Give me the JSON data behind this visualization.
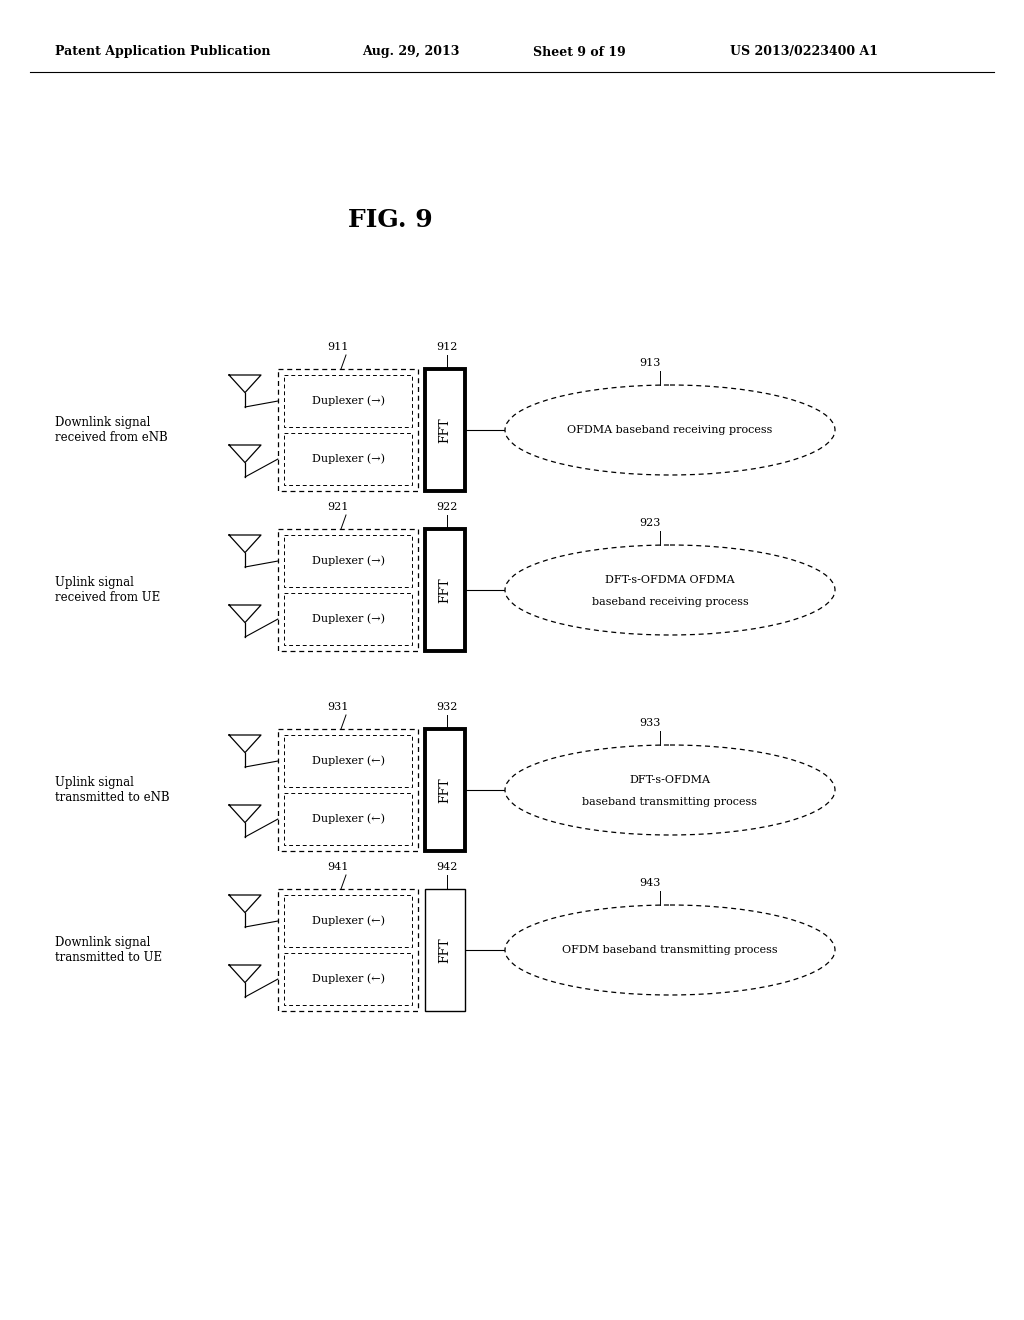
{
  "background_color": "#ffffff",
  "header_text": "Patent Application Publication",
  "header_date": "Aug. 29, 2013",
  "header_sheet": "Sheet 9 of 19",
  "header_patent": "US 2013/0223400 A1",
  "fig_label": "FIG. 9",
  "rows": [
    {
      "label": "Downlink signal\nreceived from eNB",
      "duplexer_box_num": "911",
      "fft_box_num": "912",
      "ellipse_num": "913",
      "duplexer1": "Duplexer (→)",
      "duplexer2": "Duplexer (→)",
      "ellipse_text": "OFDMA baseband receiving process",
      "ellipse_line2": "",
      "fft_bold": true
    },
    {
      "label": "Uplink signal\nreceived from UE",
      "duplexer_box_num": "921",
      "fft_box_num": "922",
      "ellipse_num": "923",
      "duplexer1": "Duplexer (→)",
      "duplexer2": "Duplexer (→)",
      "ellipse_text": "DFT-s-OFDMA OFDMA",
      "ellipse_line2": "baseband receiving process",
      "fft_bold": true
    },
    {
      "label": "Uplink signal\ntransmitted to eNB",
      "duplexer_box_num": "931",
      "fft_box_num": "932",
      "ellipse_num": "933",
      "duplexer1": "Duplexer (←)",
      "duplexer2": "Duplexer (←)",
      "ellipse_text": "DFT-s-OFDMA",
      "ellipse_line2": "baseband transmitting process",
      "fft_bold": true
    },
    {
      "label": "Downlink signal\ntransmitted to UE",
      "duplexer_box_num": "941",
      "fft_box_num": "942",
      "ellipse_num": "943",
      "duplexer1": "Duplexer (←)",
      "duplexer2": "Duplexer (←)",
      "ellipse_text": "OFDM baseband transmitting process",
      "ellipse_line2": "",
      "fft_bold": false
    }
  ]
}
